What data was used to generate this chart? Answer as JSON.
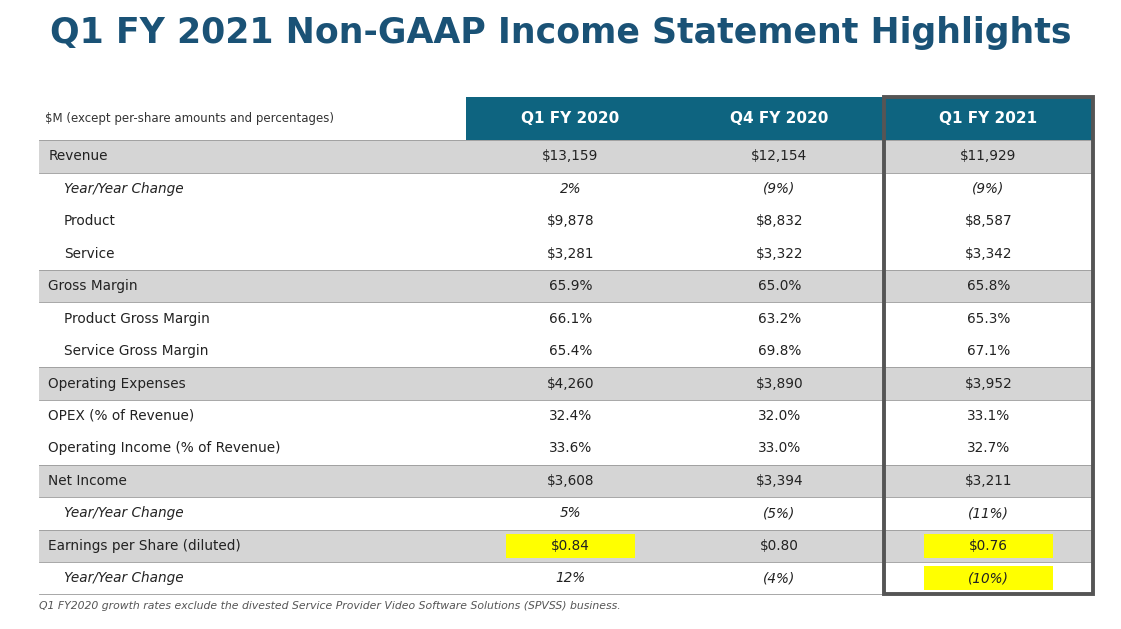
{
  "title": "Q1 FY 2021 Non-GAAP Income Statement Highlights",
  "title_color": "#1a5276",
  "subtitle": "$M (except per-share amounts and percentages)",
  "col_headers": [
    "Q1 FY 2020",
    "Q4 FY 2020",
    "Q1 FY 2021"
  ],
  "col_header_bg": "#0e6480",
  "col_header_color": "#ffffff",
  "background_color": "#ffffff",
  "highlight_color": "#ffff00",
  "footnote": "Q1 FY2020 growth rates exclude the divested Service Provider Video Software Solutions (SPVSS) business.",
  "groups": [
    {
      "rows": [
        {
          "label": "Revenue",
          "values": [
            "$13,159",
            "$12,154",
            "$11,929"
          ],
          "italic": false,
          "indent": false,
          "highlight": [
            false,
            false,
            false
          ]
        }
      ],
      "bg": "#d5d5d5"
    },
    {
      "rows": [
        {
          "label": "Year/Year Change",
          "values": [
            "2%",
            "(9%)",
            "(9%)"
          ],
          "italic": true,
          "indent": true,
          "highlight": [
            false,
            false,
            false
          ]
        },
        {
          "label": "Product",
          "values": [
            "$9,878",
            "$8,832",
            "$8,587"
          ],
          "italic": false,
          "indent": true,
          "highlight": [
            false,
            false,
            false
          ]
        },
        {
          "label": "Service",
          "values": [
            "$3,281",
            "$3,322",
            "$3,342"
          ],
          "italic": false,
          "indent": true,
          "highlight": [
            false,
            false,
            false
          ]
        }
      ],
      "bg": "#ffffff"
    },
    {
      "rows": [
        {
          "label": "Gross Margin",
          "values": [
            "65.9%",
            "65.0%",
            "65.8%"
          ],
          "italic": false,
          "indent": false,
          "highlight": [
            false,
            false,
            false
          ]
        }
      ],
      "bg": "#d5d5d5"
    },
    {
      "rows": [
        {
          "label": "Product Gross Margin",
          "values": [
            "66.1%",
            "63.2%",
            "65.3%"
          ],
          "italic": false,
          "indent": true,
          "highlight": [
            false,
            false,
            false
          ]
        },
        {
          "label": "Service Gross Margin",
          "values": [
            "65.4%",
            "69.8%",
            "67.1%"
          ],
          "italic": false,
          "indent": true,
          "highlight": [
            false,
            false,
            false
          ]
        }
      ],
      "bg": "#ffffff"
    },
    {
      "rows": [
        {
          "label": "Operating Expenses",
          "values": [
            "$4,260",
            "$3,890",
            "$3,952"
          ],
          "italic": false,
          "indent": false,
          "highlight": [
            false,
            false,
            false
          ]
        }
      ],
      "bg": "#d5d5d5"
    },
    {
      "rows": [
        {
          "label": "OPEX (% of Revenue)",
          "values": [
            "32.4%",
            "32.0%",
            "33.1%"
          ],
          "italic": false,
          "indent": false,
          "highlight": [
            false,
            false,
            false
          ]
        },
        {
          "label": "Operating Income (% of Revenue)",
          "values": [
            "33.6%",
            "33.0%",
            "32.7%"
          ],
          "italic": false,
          "indent": false,
          "highlight": [
            false,
            false,
            false
          ]
        }
      ],
      "bg": "#ffffff"
    },
    {
      "rows": [
        {
          "label": "Net Income",
          "values": [
            "$3,608",
            "$3,394",
            "$3,211"
          ],
          "italic": false,
          "indent": false,
          "highlight": [
            false,
            false,
            false
          ]
        }
      ],
      "bg": "#d5d5d5"
    },
    {
      "rows": [
        {
          "label": "Year/Year Change",
          "values": [
            "5%",
            "(5%)",
            "(11%)"
          ],
          "italic": true,
          "indent": true,
          "highlight": [
            false,
            false,
            false
          ]
        }
      ],
      "bg": "#ffffff"
    },
    {
      "rows": [
        {
          "label": "Earnings per Share (diluted)",
          "values": [
            "$0.84",
            "$0.80",
            "$0.76"
          ],
          "italic": false,
          "indent": false,
          "highlight": [
            true,
            false,
            true
          ]
        }
      ],
      "bg": "#d5d5d5"
    },
    {
      "rows": [
        {
          "label": "Year/Year Change",
          "values": [
            "12%",
            "(4%)",
            "(10%)"
          ],
          "italic": true,
          "indent": true,
          "highlight": [
            false,
            false,
            true
          ]
        }
      ],
      "bg": "#ffffff"
    }
  ]
}
